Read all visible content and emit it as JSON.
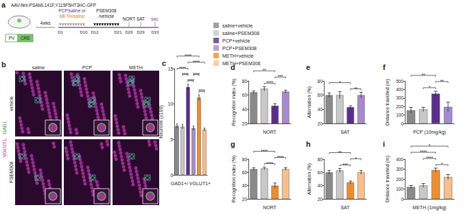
{
  "schematic": {
    "title": "a",
    "vector": "AAV-flex-PSAML141F,Y115F5HT3HC-GFP",
    "cells": [
      "PV",
      "CRE"
    ],
    "wait": "4wks",
    "treatment1": [
      "PCP/saline or",
      "METH/saline"
    ],
    "treatment2": [
      "PSEM308",
      "/vehicle"
    ],
    "days": [
      "D1",
      "D10",
      "D12",
      "D21",
      "D26",
      "D29",
      "D33"
    ],
    "tests": [
      "NORT",
      "SAT",
      "sac."
    ]
  },
  "micrograph": {
    "title": "b",
    "columns": [
      "saline",
      "PCP",
      "METH"
    ],
    "rows": [
      "vehicle",
      "PSEM308"
    ],
    "stain": [
      {
        "text": "VGLUT1,",
        "color": "#c2309f"
      },
      {
        "text": "GAD1",
        "color": "#2e9e3a"
      }
    ]
  },
  "legend_items": [
    {
      "name": "saline+vehicle",
      "color": "#8a8a8a"
    },
    {
      "name": "saline+PSEM308",
      "color": "#c8c8c8"
    },
    {
      "name": "PCP+vehicle",
      "color": "#5a2d91"
    },
    {
      "name": "PCP+PSEM308",
      "color": "#a58bcc"
    },
    {
      "name": "METH+vehicle",
      "color": "#f28c28"
    },
    {
      "name": "METH+PSEM308",
      "color": "#f7bf8a"
    }
  ],
  "chart_data": [
    {
      "type": "bar",
      "title": "c",
      "x_label": "GAD1+/ VGLUT1+",
      "y_label": "Neurons (x100)",
      "categories": [
        null,
        null,
        null,
        null,
        null,
        null
      ],
      "values": [
        6.9,
        6.8,
        12.4,
        6.6,
        10.9,
        6.4
      ],
      "errors": [
        0.3,
        0.3,
        0.4,
        0.3,
        0.4,
        0.2
      ],
      "colors": [
        "#8a8a8a",
        "#c8c8c8",
        "#5a2d91",
        "#a58bcc",
        "#f28c28",
        "#f7bf8a"
      ],
      "ylim": [
        0,
        15
      ],
      "yticks": [
        0,
        5,
        10,
        15
      ],
      "grid": false,
      "annotations": [
        {
          "from": 2,
          "to": 3,
          "label": "****"
        },
        {
          "from": 4,
          "to": 5,
          "label": "****"
        },
        {
          "from": 3,
          "to": 4,
          "label": "****"
        },
        {
          "from": 1,
          "to": 2,
          "label": "****"
        },
        {
          "from": 0,
          "to": 2,
          "label": "****"
        },
        {
          "from": 2,
          "to": 5,
          "label": "****"
        },
        {
          "from": 0,
          "to": 4,
          "label": "****"
        }
      ]
    },
    {
      "type": "bar",
      "title": "d",
      "x_label": "NORT",
      "y_label": "Recognition index (%)",
      "categories": [
        null,
        null,
        null,
        null
      ],
      "values": [
        64,
        69,
        45,
        65
      ],
      "errors": [
        2,
        3,
        3,
        2
      ],
      "colors": [
        "#8a8a8a",
        "#c8c8c8",
        "#5a2d91",
        "#a58bcc"
      ],
      "ylim": [
        20,
        80
      ],
      "yticks": [
        20,
        40,
        60,
        80
      ],
      "grid": false,
      "annotations": [
        {
          "from": 1,
          "to": 2,
          "label": "****"
        },
        {
          "from": 2,
          "to": 3,
          "label": "***"
        },
        {
          "from": 0,
          "to": 2,
          "label": "**"
        }
      ]
    },
    {
      "type": "bar",
      "title": "e",
      "x_label": "SAT",
      "y_label": "Alternation (%)",
      "categories": [
        null,
        null,
        null,
        null
      ],
      "values": [
        60,
        60,
        43,
        60
      ],
      "errors": [
        3,
        5,
        2,
        4
      ],
      "colors": [
        "#8a8a8a",
        "#c8c8c8",
        "#5a2d91",
        "#a58bcc"
      ],
      "ylim": [
        20,
        80
      ],
      "yticks": [
        20,
        40,
        60,
        80
      ],
      "grid": false,
      "annotations": [
        {
          "from": 2,
          "to": 3,
          "label": "**"
        },
        {
          "from": 0,
          "to": 2,
          "label": "*"
        }
      ]
    },
    {
      "type": "bar",
      "title": "f",
      "x_label": "PCP (10mg/kg)",
      "y_label": "Distance travelled (m)",
      "categories": [
        null,
        null,
        null,
        null
      ],
      "values": [
        155,
        165,
        350,
        195
      ],
      "errors": [
        35,
        25,
        30,
        55
      ],
      "colors": [
        "#8a8a8a",
        "#c8c8c8",
        "#5a2d91",
        "#a58bcc"
      ],
      "ylim": [
        0,
        500
      ],
      "yticks": [
        0,
        100,
        200,
        300,
        400,
        500
      ],
      "grid": false,
      "annotations": [
        {
          "from": 1,
          "to": 2,
          "label": "*"
        },
        {
          "from": 2,
          "to": 3,
          "label": "**"
        },
        {
          "from": 0,
          "to": 2,
          "label": "**"
        }
      ]
    },
    {
      "type": "bar",
      "title": "g",
      "x_label": "NORT",
      "y_label": "Recognition index (%)",
      "categories": [
        null,
        null,
        null,
        null
      ],
      "values": [
        65,
        66,
        40,
        65
      ],
      "errors": [
        2,
        2,
        4,
        2
      ],
      "colors": [
        "#8a8a8a",
        "#c8c8c8",
        "#f28c28",
        "#f7bf8a"
      ],
      "ylim": [
        20,
        80
      ],
      "yticks": [
        20,
        40,
        60,
        80
      ],
      "grid": false,
      "annotations": [
        {
          "from": 1,
          "to": 2,
          "label": "****"
        },
        {
          "from": 2,
          "to": 3,
          "label": "****"
        },
        {
          "from": 0,
          "to": 2,
          "label": "****"
        }
      ]
    },
    {
      "type": "bar",
      "title": "h",
      "x_label": "SAT",
      "y_label": "Alternation (%)",
      "categories": [
        null,
        null,
        null,
        null
      ],
      "values": [
        60,
        63,
        45,
        60
      ],
      "errors": [
        3,
        3,
        2,
        3
      ],
      "colors": [
        "#8a8a8a",
        "#c8c8c8",
        "#f28c28",
        "#f7bf8a"
      ],
      "ylim": [
        20,
        80
      ],
      "yticks": [
        20,
        40,
        60,
        80
      ],
      "grid": false,
      "annotations": [
        {
          "from": 1,
          "to": 2,
          "label": "***"
        },
        {
          "from": 2,
          "to": 3,
          "label": "*"
        },
        {
          "from": 0,
          "to": 2,
          "label": "**"
        }
      ]
    },
    {
      "type": "bar",
      "title": "i",
      "x_label": "METH (1mg/kg)",
      "y_label": "Distance travelled (m)",
      "categories": [
        null,
        null,
        null,
        null
      ],
      "values": [
        120,
        135,
        290,
        220
      ],
      "errors": [
        15,
        20,
        20,
        25
      ],
      "colors": [
        "#8a8a8a",
        "#c8c8c8",
        "#f28c28",
        "#f7bf8a"
      ],
      "ylim": [
        0,
        400
      ],
      "yticks": [
        0,
        100,
        200,
        300,
        400
      ],
      "grid": false,
      "annotations": [
        {
          "from": 2,
          "to": 3,
          "label": "*"
        },
        {
          "from": 1,
          "to": 2,
          "label": "****"
        },
        {
          "from": 0,
          "to": 2,
          "label": "****"
        },
        {
          "from": 0,
          "to": 3,
          "label": "*"
        }
      ]
    }
  ]
}
